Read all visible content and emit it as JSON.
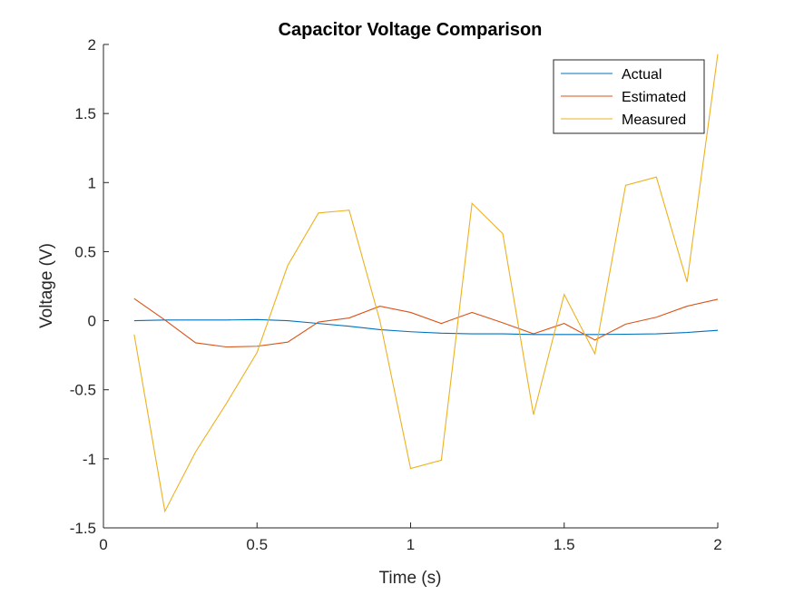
{
  "chart_data": {
    "type": "line",
    "title": "Capacitor Voltage Comparison",
    "xlabel": "Time (s)",
    "ylabel": "Voltage (V)",
    "xlim": [
      0,
      2
    ],
    "ylim": [
      -1.5,
      2
    ],
    "xticks": [
      0,
      0.5,
      1,
      1.5,
      2
    ],
    "xtick_labels": [
      "0",
      "0.5",
      "1",
      "1.5",
      "2"
    ],
    "yticks": [
      -1.5,
      -1,
      -0.5,
      0,
      0.5,
      1,
      1.5,
      2
    ],
    "ytick_labels": [
      "-1.5",
      "-1",
      "-0.5",
      "0",
      "0.5",
      "1",
      "1.5",
      "2"
    ],
    "grid": false,
    "legend_position": "top-right",
    "x": [
      0.1,
      0.2,
      0.3,
      0.4,
      0.5,
      0.6,
      0.7,
      0.8,
      0.9,
      1.0,
      1.1,
      1.2,
      1.3,
      1.4,
      1.5,
      1.6,
      1.7,
      1.8,
      1.9,
      2.0
    ],
    "series": [
      {
        "name": "Actual",
        "color": "#0072BD",
        "values": [
          0.0,
          0.005,
          0.005,
          0.005,
          0.008,
          0.0,
          -0.02,
          -0.04,
          -0.065,
          -0.08,
          -0.09,
          -0.095,
          -0.095,
          -0.1,
          -0.1,
          -0.1,
          -0.098,
          -0.095,
          -0.085,
          -0.07
        ]
      },
      {
        "name": "Estimated",
        "color": "#D95319",
        "values": [
          0.16,
          0.005,
          -0.16,
          -0.19,
          -0.185,
          -0.155,
          -0.01,
          0.02,
          0.105,
          0.06,
          -0.02,
          0.06,
          -0.015,
          -0.095,
          -0.02,
          -0.14,
          -0.025,
          0.025,
          0.105,
          0.155
        ]
      },
      {
        "name": "Measured",
        "color": "#EDB120",
        "values": [
          -0.1,
          -1.38,
          -0.95,
          -0.6,
          -0.23,
          0.4,
          0.78,
          0.8,
          0.0,
          -1.07,
          -1.01,
          0.85,
          0.63,
          -0.68,
          0.19,
          -0.24,
          0.98,
          1.04,
          0.28,
          1.93
        ]
      }
    ]
  }
}
